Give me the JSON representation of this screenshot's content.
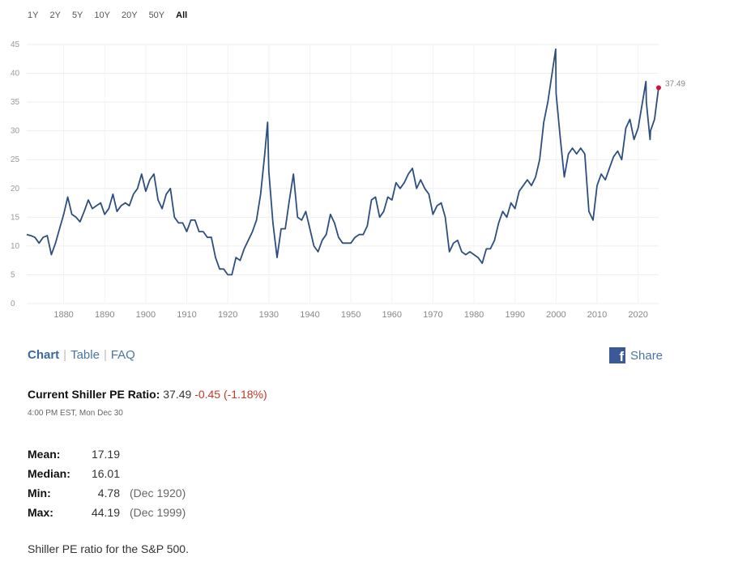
{
  "range_buttons": [
    "1Y",
    "2Y",
    "5Y",
    "10Y",
    "20Y",
    "50Y",
    "All"
  ],
  "active_range": "All",
  "tabs": {
    "chart": "Chart",
    "table": "Table",
    "faq": "FAQ"
  },
  "share_label": "Share",
  "current": {
    "label": "Current Shiller PE Ratio:",
    "value": "37.49",
    "change": "-0.45 (-1.18%)",
    "time": "4:00 PM EST, Mon Dec 30"
  },
  "stats": {
    "mean": {
      "label": "Mean:",
      "value": "17.19"
    },
    "median": {
      "label": "Median:",
      "value": "16.01"
    },
    "min": {
      "label": "Min:",
      "value": "4.78",
      "date": "(Dec 1920)"
    },
    "max": {
      "label": "Max:",
      "value": "44.19",
      "date": "(Dec 1999)"
    }
  },
  "description": "Shiller PE ratio for the S&P 500.",
  "colors": {
    "line": "#2d4f80",
    "marker": "#d0103a",
    "link": "#4a74a8",
    "negative": "#c0392b"
  },
  "chart_data": {
    "type": "line",
    "ylim": [
      0,
      45
    ],
    "xlim": [
      1871,
      2025
    ],
    "yticks": [
      0,
      5,
      10,
      15,
      20,
      25,
      30,
      35,
      40,
      45
    ],
    "xticks": [
      1880,
      1890,
      1900,
      1910,
      1920,
      1930,
      1940,
      1950,
      1960,
      1970,
      1980,
      1990,
      2000,
      2010,
      2020
    ],
    "last_label": "37.49",
    "grid": true,
    "series": [
      {
        "x": [
          1871,
          1872,
          1873,
          1874,
          1875,
          1876,
          1877,
          1878,
          1879,
          1880,
          1881,
          1882,
          1883,
          1884,
          1885,
          1886,
          1887,
          1888,
          1889,
          1890,
          1891,
          1892,
          1893,
          1894,
          1895,
          1896,
          1897,
          1898,
          1899,
          1900,
          1901,
          1902,
          1903,
          1904,
          1905,
          1906,
          1907,
          1908,
          1909,
          1910,
          1911,
          1912,
          1913,
          1914,
          1915,
          1916,
          1917,
          1918,
          1919,
          1920,
          1921,
          1922,
          1923,
          1924,
          1925,
          1926,
          1927,
          1928,
          1929,
          1929.7,
          1930,
          1931,
          1932,
          1933,
          1934,
          1935,
          1936,
          1937,
          1938,
          1939,
          1940,
          1941,
          1942,
          1943,
          1944,
          1945,
          1946,
          1947,
          1948,
          1949,
          1950,
          1951,
          1952,
          1953,
          1954,
          1955,
          1956,
          1957,
          1958,
          1959,
          1960,
          1961,
          1962,
          1963,
          1964,
          1965,
          1966,
          1967,
          1968,
          1969,
          1970,
          1971,
          1972,
          1973,
          1974,
          1975,
          1976,
          1977,
          1978,
          1979,
          1980,
          1981,
          1982,
          1983,
          1984,
          1985,
          1986,
          1987,
          1988,
          1989,
          1990,
          1991,
          1992,
          1993,
          1994,
          1995,
          1996,
          1997,
          1998,
          1999.9,
          2000,
          2001,
          2002,
          2003,
          2004,
          2005,
          2006,
          2007,
          2008,
          2009,
          2010,
          2011,
          2012,
          2013,
          2014,
          2015,
          2016,
          2017,
          2018,
          2019,
          2020,
          2021.9,
          2022,
          2022.9,
          2023,
          2024,
          2024.99
        ],
        "values": [
          12,
          11.8,
          11.5,
          10.5,
          11.5,
          11.8,
          8.5,
          10.5,
          13,
          15.5,
          18.5,
          15.5,
          15,
          14.2,
          16,
          18,
          16.5,
          17,
          17.5,
          15.5,
          16.5,
          19,
          16,
          17,
          17.5,
          17,
          19,
          20,
          22.5,
          19.5,
          21.5,
          22.5,
          18,
          16.5,
          19,
          20,
          15,
          14,
          14,
          12.5,
          14.5,
          14.5,
          12.5,
          12.5,
          11.5,
          11.5,
          8,
          6,
          6,
          5,
          5,
          8,
          7.5,
          9.5,
          11,
          12.5,
          14.5,
          19,
          26,
          31.5,
          23,
          14,
          8,
          13,
          13,
          18,
          22.5,
          15,
          14.5,
          16,
          13,
          10,
          9,
          11,
          12,
          15.5,
          14,
          11.5,
          10.5,
          10.5,
          10.5,
          11.5,
          12,
          12,
          13.5,
          18,
          18.5,
          15,
          16,
          18.5,
          18,
          21,
          20,
          21,
          22.5,
          23.5,
          20,
          21.5,
          20,
          19,
          15.5,
          17,
          17.5,
          15,
          9,
          10.5,
          11,
          9,
          8.5,
          9,
          8.5,
          8,
          7,
          9.5,
          9.5,
          11,
          14,
          16,
          15,
          17.5,
          16.5,
          19.5,
          20.5,
          21.5,
          20.5,
          22,
          25,
          31.5,
          35,
          44.19,
          36.5,
          29,
          22,
          26,
          27,
          26,
          27,
          26,
          16,
          14.5,
          20.5,
          22.5,
          21.5,
          23.5,
          25.5,
          26.5,
          25,
          30.5,
          32,
          28.5,
          30.5,
          38.58,
          35,
          28.5,
          30,
          32,
          37.49
        ]
      }
    ]
  }
}
